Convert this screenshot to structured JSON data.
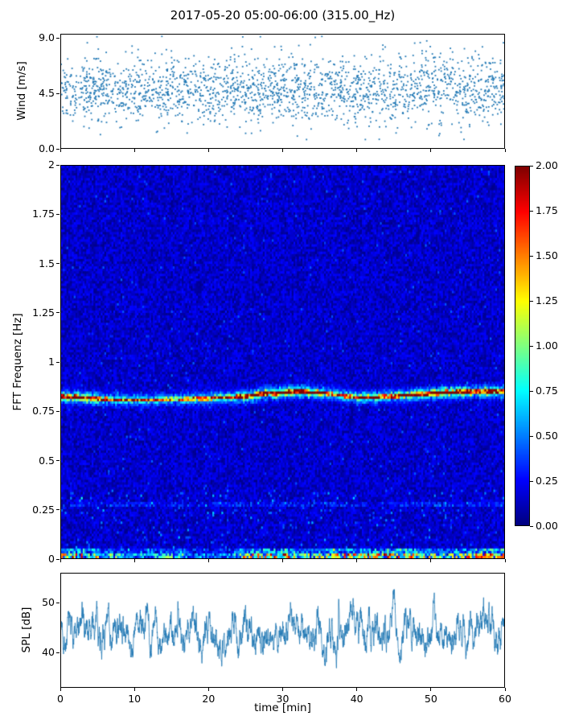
{
  "chart_data": {
    "title": "2017-05-20 05:00-06:00 (315.00_Hz)",
    "xlabel": "time [min]",
    "xlim": [
      0,
      60
    ],
    "x_ticks": [
      "0",
      "10",
      "20",
      "30",
      "40",
      "50",
      "60"
    ],
    "x_tick_values": [
      0,
      10,
      20,
      30,
      40,
      50,
      60
    ],
    "panels": [
      {
        "name": "wind",
        "type": "scatter",
        "ylabel": "Wind [m/s]",
        "y_ticks": [
          "0.0",
          "4.5",
          "9.0"
        ],
        "y_tick_values": [
          0,
          4.5,
          9
        ],
        "ylim": [
          0,
          9.35
        ],
        "marker_color": "#1f77b4",
        "n_points": 2100,
        "mean": 4.8,
        "std": 1.15,
        "min": 0.7,
        "max": 9.3,
        "outlier_fraction": 0.05,
        "seed": 42
      },
      {
        "name": "spectrogram",
        "type": "heatmap",
        "ylabel": "FFT Frequenz [Hz]",
        "y_ticks": [
          "0",
          "0.25",
          "0.5",
          "0.75",
          "1",
          "1.25",
          "1.5",
          "1.75",
          "2"
        ],
        "y_tick_values": [
          0,
          0.25,
          0.5,
          0.75,
          1,
          1.25,
          1.5,
          1.75,
          2
        ],
        "ylim": [
          0,
          2
        ],
        "colormap": "jet",
        "vmin": 0,
        "vmax": 2,
        "noise_floor": 0.02,
        "noise_range": 0.25,
        "peak_band": {
          "description": "narrow spectral line near 0.82 Hz",
          "core_width_hz": 0.0055,
          "halo_width_hz": 0.02,
          "center_keyframes": [
            [
              0,
              0.825
            ],
            [
              5,
              0.812
            ],
            [
              10,
              0.805
            ],
            [
              15,
              0.81
            ],
            [
              20,
              0.815
            ],
            [
              25,
              0.825
            ],
            [
              28,
              0.84
            ],
            [
              32,
              0.85
            ],
            [
              36,
              0.84
            ],
            [
              40,
              0.82
            ],
            [
              45,
              0.825
            ],
            [
              50,
              0.84
            ],
            [
              55,
              0.85
            ],
            [
              60,
              0.85
            ]
          ],
          "intensity_keyframes": [
            [
              0,
              1.9
            ],
            [
              4,
              1.7
            ],
            [
              8,
              1.2
            ],
            [
              12,
              1.1
            ],
            [
              16,
              1.25
            ],
            [
              20,
              1.3
            ],
            [
              24,
              1.6
            ],
            [
              28,
              1.95
            ],
            [
              33,
              1.9
            ],
            [
              37,
              1.2
            ],
            [
              41,
              1.7
            ],
            [
              45,
              1.6
            ],
            [
              49,
              1.85
            ],
            [
              53,
              1.95
            ],
            [
              57,
              1.9
            ],
            [
              60,
              1.9
            ]
          ]
        },
        "low_band": {
          "description": "intermittent energy below 0.05 Hz",
          "intensity_keyframes": [
            [
              0,
              1.2
            ],
            [
              3,
              1.4
            ],
            [
              6,
              0.9
            ],
            [
              10,
              0.5
            ],
            [
              14,
              0.8
            ],
            [
              18,
              0.5
            ],
            [
              22,
              0.45
            ],
            [
              26,
              1.2
            ],
            [
              30,
              1.5
            ],
            [
              33,
              0.8
            ],
            [
              36,
              1.1
            ],
            [
              40,
              1.4
            ],
            [
              44,
              1.5
            ],
            [
              48,
              1.2
            ],
            [
              52,
              0.8
            ],
            [
              55,
              1.2
            ],
            [
              58,
              1.5
            ],
            [
              60,
              1.4
            ]
          ]
        },
        "seed": 1234,
        "colorbar": {
          "ticks": [
            "0.00",
            "0.25",
            "0.50",
            "0.75",
            "1.00",
            "1.25",
            "1.50",
            "1.75",
            "2.00"
          ],
          "tick_values": [
            0,
            0.25,
            0.5,
            0.75,
            1,
            1.25,
            1.5,
            1.75,
            2
          ],
          "vmin": 0,
          "vmax": 2
        }
      },
      {
        "name": "spl",
        "type": "line",
        "ylabel": "SPL [dB]",
        "y_ticks": [
          "40",
          "50"
        ],
        "y_tick_values": [
          40,
          50
        ],
        "ylim": [
          33,
          56
        ],
        "line_color": "#1f77b4",
        "mean": 44.5,
        "min": 35.5,
        "max": 53.5,
        "n_points": 2600,
        "seed": 7
      }
    ]
  }
}
